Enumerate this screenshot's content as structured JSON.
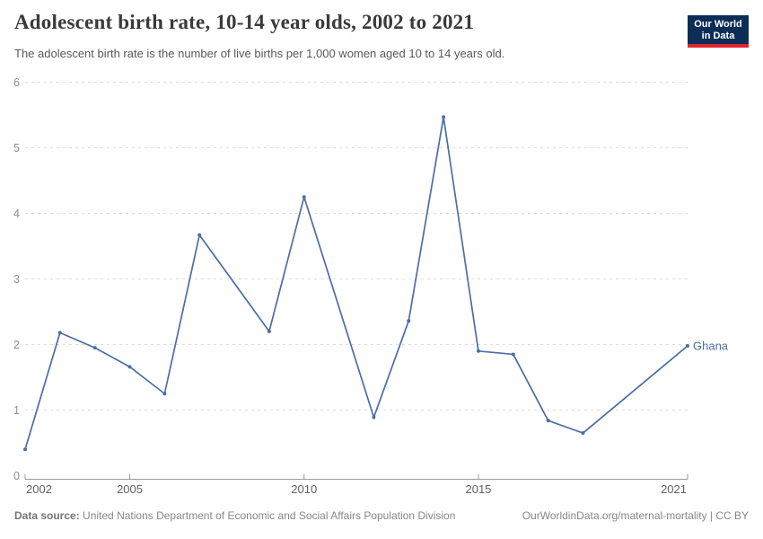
{
  "header": {
    "title": "Adolescent birth rate, 10-14 year olds, 2002 to 2021",
    "subtitle": "The adolescent birth rate is the number of live births per 1,000 women aged 10 to 14 years old.",
    "logo": {
      "line1": "Our World",
      "line2": "in Data"
    }
  },
  "footer": {
    "source_label": "Data source:",
    "source_text": "United Nations Department of Economic and Social Affairs Population Division",
    "credit": "OurWorldinData.org/maternal-mortality | CC BY"
  },
  "colors": {
    "series_blue": "#4C6EA5",
    "logo_navy": "#0C2D55",
    "logo_red": "#E0232E",
    "gridline": "#dcdcdc",
    "axis": "#9a9a9a"
  },
  "chart_data": {
    "type": "line",
    "title": "Adolescent birth rate, 10-14 year olds, 2002 to 2021",
    "xlabel": "",
    "ylabel": "",
    "xlim": [
      2002,
      2021
    ],
    "ylim": [
      0,
      6
    ],
    "x_ticks": [
      2002,
      2005,
      2010,
      2015,
      2021
    ],
    "y_ticks": [
      0,
      1,
      2,
      3,
      4,
      5,
      6
    ],
    "grid": "horizontal-dashed",
    "legend": "end-of-line-label",
    "series": [
      {
        "name": "Ghana",
        "color": "#4C6EA5",
        "points": [
          [
            2002,
            0.4
          ],
          [
            2003,
            2.18
          ],
          [
            2004,
            1.95
          ],
          [
            2005,
            1.66
          ],
          [
            2006,
            1.25
          ],
          [
            2007,
            3.67
          ],
          [
            2009,
            2.2
          ],
          [
            2010,
            4.25
          ],
          [
            2012,
            0.89
          ],
          [
            2013,
            2.36
          ],
          [
            2014,
            5.47
          ],
          [
            2015,
            1.9
          ],
          [
            2016,
            1.85
          ],
          [
            2017,
            0.84
          ],
          [
            2018,
            0.65
          ],
          [
            2021,
            1.98
          ]
        ]
      }
    ]
  }
}
